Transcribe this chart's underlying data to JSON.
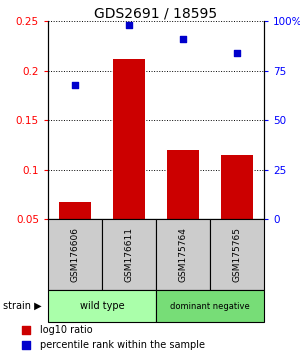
{
  "title": "GDS2691 / 18595",
  "categories": [
    "GSM176606",
    "GSM176611",
    "GSM175764",
    "GSM175765"
  ],
  "bar_values": [
    0.068,
    0.212,
    0.12,
    0.115
  ],
  "scatter_values": [
    0.186,
    0.246,
    0.232,
    0.218
  ],
  "bar_color": "#cc0000",
  "scatter_color": "#0000cc",
  "ylim_left": [
    0.05,
    0.25
  ],
  "ylim_right": [
    0,
    100
  ],
  "yticks_left": [
    0.05,
    0.1,
    0.15,
    0.2,
    0.25
  ],
  "yticks_right": [
    0,
    25,
    50,
    75,
    100
  ],
  "ytick_labels_right": [
    "0",
    "25",
    "50",
    "75",
    "100%"
  ],
  "group_labels": [
    "wild type",
    "dominant negative"
  ],
  "group_color_1": "#aaffaa",
  "group_color_2": "#77dd77",
  "group_ranges": [
    [
      0,
      2
    ],
    [
      2,
      4
    ]
  ],
  "strain_label": "strain",
  "legend_bar": "log10 ratio",
  "legend_scatter": "percentile rank within the sample",
  "bar_width": 0.6,
  "gsm_bg": "#cccccc"
}
